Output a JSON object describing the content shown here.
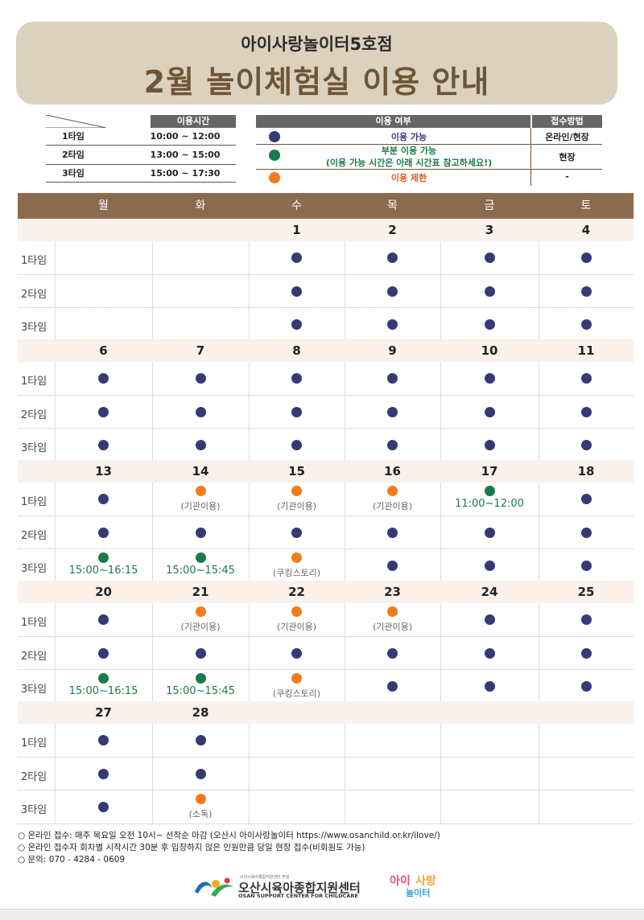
{
  "header": {
    "subtitle": "아이사랑놀이터5호점",
    "title": "2월 놀이체험실 이용 안내"
  },
  "time_table": {
    "header": "이용시간",
    "rows": [
      {
        "type": "1타임",
        "time": "10:00 ~ 12:00"
      },
      {
        "type": "2타임",
        "time": "13:00 ~ 15:00"
      },
      {
        "type": "3타임",
        "time": "15:00 ~ 17:30"
      }
    ]
  },
  "legend": {
    "header_status": "이용 여부",
    "header_method": "접수방법",
    "rows": [
      {
        "color": "#363a74",
        "label": "이용 가능",
        "label_color": "#363a74",
        "method": "온라인/현장"
      },
      {
        "color": "#1a7a4c",
        "label": "부분 이용 가능",
        "label2": "(이용 가능 시간은 아래 시간표 참고하세요!)",
        "label_color": "#1a7a4c",
        "method": "현장"
      },
      {
        "color": "#f57a1c",
        "label": "이용 제한",
        "label_color": "#f0561c",
        "method": "-"
      }
    ]
  },
  "colors": {
    "available": "#363a74",
    "partial": "#1a7a4c",
    "restricted": "#f57a1c"
  },
  "calendar": {
    "weekdays": [
      "월",
      "화",
      "수",
      "목",
      "금",
      "토"
    ],
    "slot_labels": [
      "1타임",
      "2타임",
      "3타임"
    ],
    "weeks": [
      {
        "dates": [
          "",
          "",
          "1",
          "2",
          "3",
          "4"
        ],
        "slots": [
          [
            null,
            null,
            {
              "s": "a"
            },
            {
              "s": "a"
            },
            {
              "s": "a"
            },
            {
              "s": "a"
            }
          ],
          [
            null,
            null,
            {
              "s": "a"
            },
            {
              "s": "a"
            },
            {
              "s": "a"
            },
            {
              "s": "a"
            }
          ],
          [
            null,
            null,
            {
              "s": "a"
            },
            {
              "s": "a"
            },
            {
              "s": "a"
            },
            {
              "s": "a"
            }
          ]
        ]
      },
      {
        "dates": [
          "6",
          "7",
          "8",
          "9",
          "10",
          "11"
        ],
        "slots": [
          [
            {
              "s": "a"
            },
            {
              "s": "a"
            },
            {
              "s": "a"
            },
            {
              "s": "a"
            },
            {
              "s": "a"
            },
            {
              "s": "a"
            }
          ],
          [
            {
              "s": "a"
            },
            {
              "s": "a"
            },
            {
              "s": "a"
            },
            {
              "s": "a"
            },
            {
              "s": "a"
            },
            {
              "s": "a"
            }
          ],
          [
            {
              "s": "a"
            },
            {
              "s": "a"
            },
            {
              "s": "a"
            },
            {
              "s": "a"
            },
            {
              "s": "a"
            },
            {
              "s": "a"
            }
          ]
        ]
      },
      {
        "dates": [
          "13",
          "14",
          "15",
          "16",
          "17",
          "18"
        ],
        "slots": [
          [
            {
              "s": "a"
            },
            {
              "s": "r",
              "note": "(기관이용)"
            },
            {
              "s": "r",
              "note": "(기관이용)"
            },
            {
              "s": "r",
              "note": "(기관이용)"
            },
            {
              "s": "p",
              "note": "11:00~12:00"
            },
            {
              "s": "a"
            }
          ],
          [
            {
              "s": "a"
            },
            {
              "s": "a"
            },
            {
              "s": "a"
            },
            {
              "s": "a"
            },
            {
              "s": "a"
            },
            {
              "s": "a"
            }
          ],
          [
            {
              "s": "p",
              "note": "15:00~16:15"
            },
            {
              "s": "p",
              "note": "15:00~15:45"
            },
            {
              "s": "r",
              "note": "(쿠킹스토리)"
            },
            {
              "s": "a"
            },
            {
              "s": "a"
            },
            {
              "s": "a"
            }
          ]
        ]
      },
      {
        "dates": [
          "20",
          "21",
          "22",
          "23",
          "24",
          "25"
        ],
        "slots": [
          [
            {
              "s": "a"
            },
            {
              "s": "r",
              "note": "(기관이용)"
            },
            {
              "s": "r",
              "note": "(기관이용)"
            },
            {
              "s": "r",
              "note": "(기관이용)"
            },
            {
              "s": "a"
            },
            {
              "s": "a"
            }
          ],
          [
            {
              "s": "a"
            },
            {
              "s": "a"
            },
            {
              "s": "a"
            },
            {
              "s": "a"
            },
            {
              "s": "a"
            },
            {
              "s": "a"
            }
          ],
          [
            {
              "s": "p",
              "note": "15:00~16:15"
            },
            {
              "s": "p",
              "note": "15:00~15:45"
            },
            {
              "s": "r",
              "note": "(쿠킹스토리)"
            },
            {
              "s": "a"
            },
            {
              "s": "a"
            },
            {
              "s": "a"
            }
          ]
        ]
      },
      {
        "dates": [
          "27",
          "28",
          "",
          "",
          "",
          ""
        ],
        "slots": [
          [
            {
              "s": "a"
            },
            {
              "s": "a"
            },
            null,
            null,
            null,
            null
          ],
          [
            {
              "s": "a"
            },
            {
              "s": "a"
            },
            null,
            null,
            null,
            null
          ],
          [
            {
              "s": "a"
            },
            {
              "s": "r",
              "note": "(소독)"
            },
            null,
            null,
            null,
            null
          ]
        ]
      }
    ]
  },
  "footer": [
    "○  온라인 접수: 매주 목요일 오전 10시~ 선착순 마감 (오산시 아이사랑놀이터 https://www.osanchild.or.kr/ilove/)",
    "○  온라인 접수자 회차별 시작시간 30분 후 입장하지 않은 인원만큼 당일 현장 접수(비회원도 가능)",
    "○  문의: 070 - 4284 - 0609"
  ],
  "logos": {
    "center_small": "오산시육아종합지원센터 부설",
    "center_ko": "오산시육아종합지원센터",
    "center_en": "OSAN SUPPORT CENTER FOR CHILDCARE",
    "brand": "아이사랑놀이터"
  }
}
